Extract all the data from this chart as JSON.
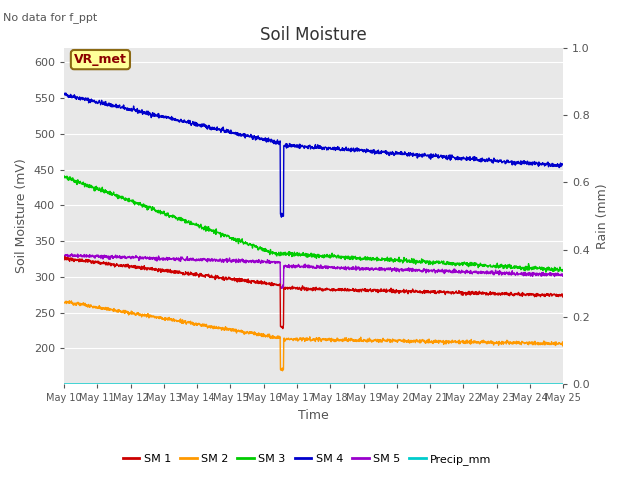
{
  "title": "Soil Moisture",
  "subtitle": "No data for f_ppt",
  "xlabel": "Time",
  "ylabel_left": "Soil Moisture (mV)",
  "ylabel_right": "Rain (mm)",
  "annotation": "VR_met",
  "x_tick_labels": [
    "May 10",
    "May 11",
    "May 12",
    "May 13",
    "May 14",
    "May 15",
    "May 16",
    "May 17",
    "May 18",
    "May 19",
    "May 20",
    "May 21",
    "May 22",
    "May 23",
    "May 24",
    "May 25"
  ],
  "ylim_left": [
    150,
    620
  ],
  "ylim_right": [
    0.0,
    1.0
  ],
  "yticks_left": [
    200,
    250,
    300,
    350,
    400,
    450,
    500,
    550,
    600
  ],
  "yticks_right": [
    0.0,
    0.2,
    0.4,
    0.6,
    0.8,
    1.0
  ],
  "plot_bg_color": "#e8e8e8",
  "fig_bg_color": "#ffffff",
  "series": {
    "SM1": {
      "color": "#cc0000",
      "label": "SM 1"
    },
    "SM2": {
      "color": "#ff9900",
      "label": "SM 2"
    },
    "SM3": {
      "color": "#00cc00",
      "label": "SM 3"
    },
    "SM4": {
      "color": "#0000cc",
      "label": "SM 4"
    },
    "SM5": {
      "color": "#9900cc",
      "label": "SM 5"
    },
    "Precip": {
      "color": "#00cccc",
      "label": "Precip_mm"
    }
  },
  "n_points": 1500
}
